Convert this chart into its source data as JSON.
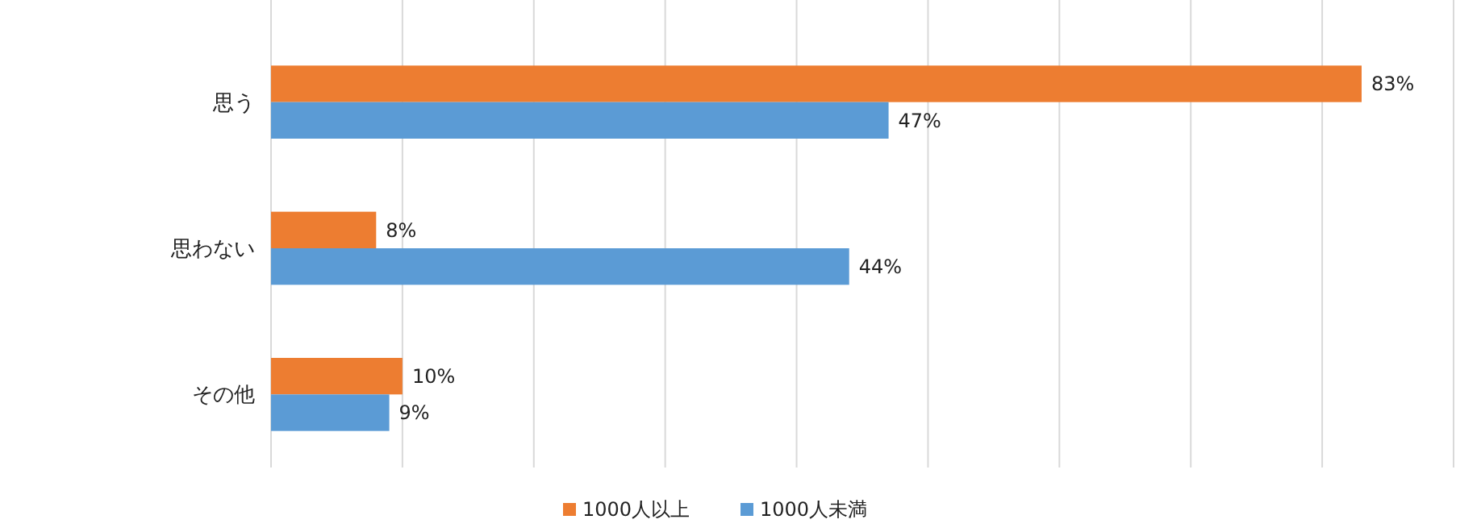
{
  "chart_data": {
    "type": "bar",
    "orientation": "horizontal",
    "categories": [
      "思う",
      "思わない",
      "その他"
    ],
    "series": [
      {
        "name": "1000人以上",
        "color": "#ed7d31",
        "values": [
          83,
          8,
          10
        ],
        "value_labels": [
          "83%",
          "8%",
          "10%"
        ]
      },
      {
        "name": "1000人未満",
        "color": "#5b9bd5",
        "values": [
          47,
          44,
          9
        ],
        "value_labels": [
          "47%",
          "44%",
          "9%"
        ]
      }
    ],
    "xlim": [
      0,
      90
    ],
    "xticks": [
      {
        "value": 0,
        "label": null
      },
      {
        "value": 10,
        "label": null
      },
      {
        "value": 20,
        "label": null
      },
      {
        "value": 30,
        "label": null
      },
      {
        "value": 40,
        "label": null
      },
      {
        "value": 50,
        "label": null
      },
      {
        "value": 60,
        "label": null
      },
      {
        "value": 70,
        "label": null
      },
      {
        "value": 80,
        "label": null
      },
      {
        "value": 90,
        "label": null
      }
    ],
    "grid": "x",
    "tick_labels": "y",
    "legend": "bottom"
  }
}
